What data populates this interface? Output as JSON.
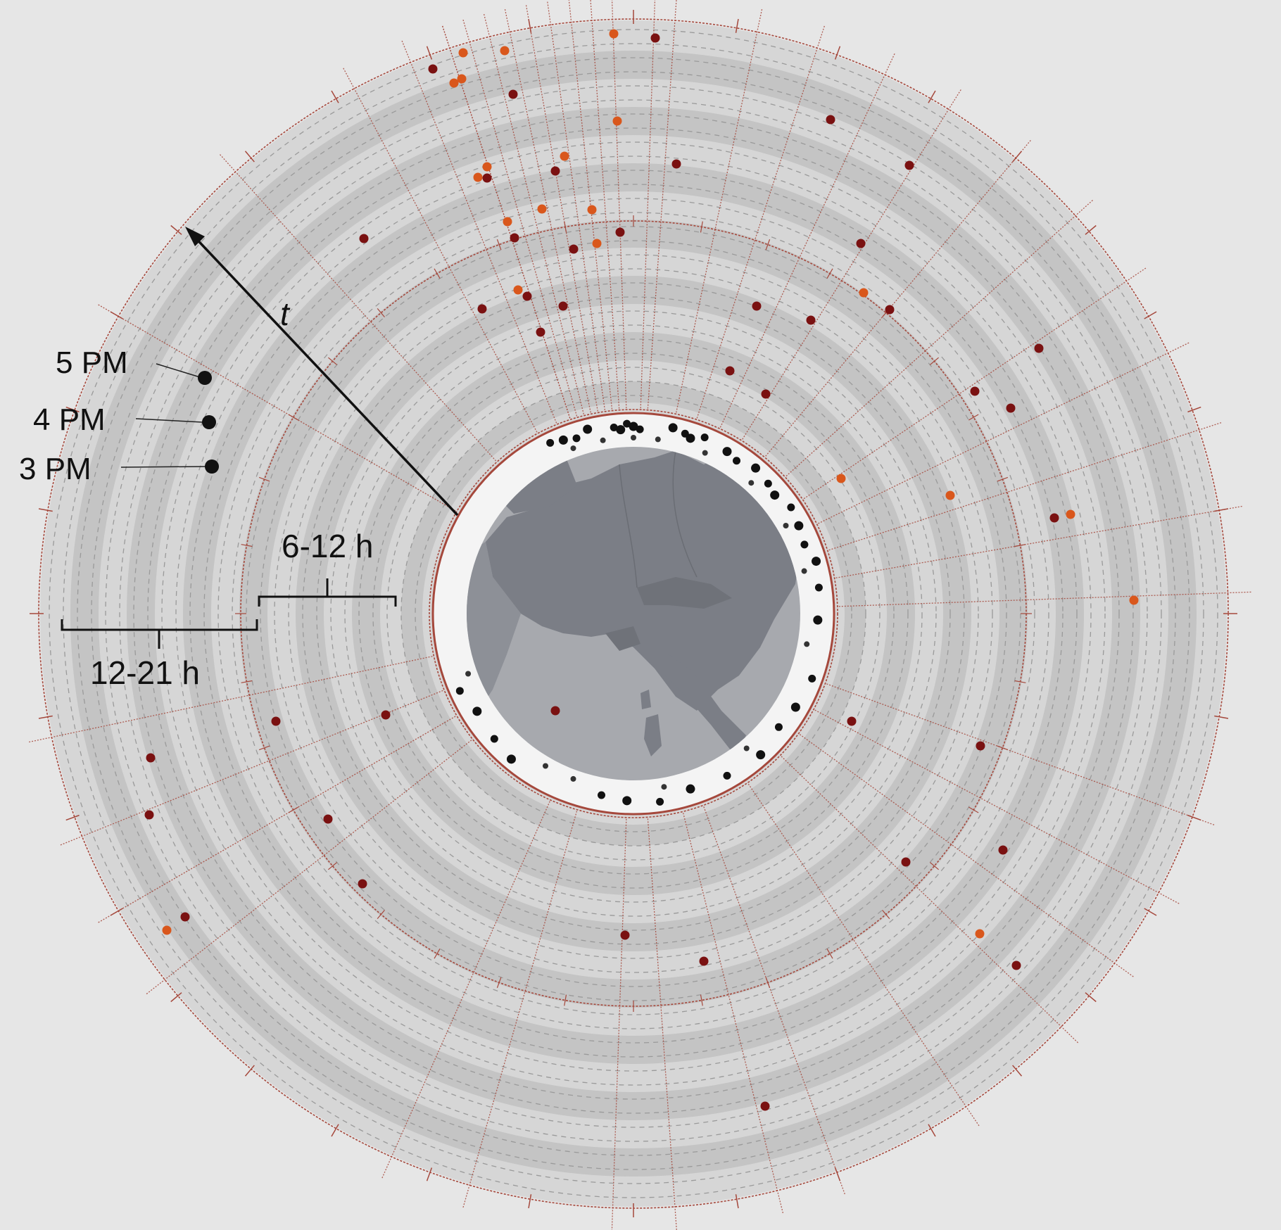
{
  "diagram": {
    "axis_label": "t",
    "time_legend": [
      {
        "label": "5 PM"
      },
      {
        "label": "4 PM"
      },
      {
        "label": "3 PM"
      }
    ],
    "duration_bands": [
      {
        "label": "6-12 h"
      },
      {
        "label": "12-21 h"
      }
    ],
    "colors": {
      "background": "#e6e6e6",
      "band_light": "#d6d6d6",
      "band_dark": "#c4c4c4",
      "earth": "#a7a9ae",
      "land": "#7b7e86",
      "rim": "#f4f4f4",
      "ring_red": "#a5483c",
      "event_dark": "#7a1111",
      "event_orange": "#d9571c",
      "station_black": "#111111",
      "dashed": "#9a9a9a"
    },
    "icons": [
      "europe-map",
      "event-marker",
      "station-marker",
      "direction-arrow"
    ]
  }
}
